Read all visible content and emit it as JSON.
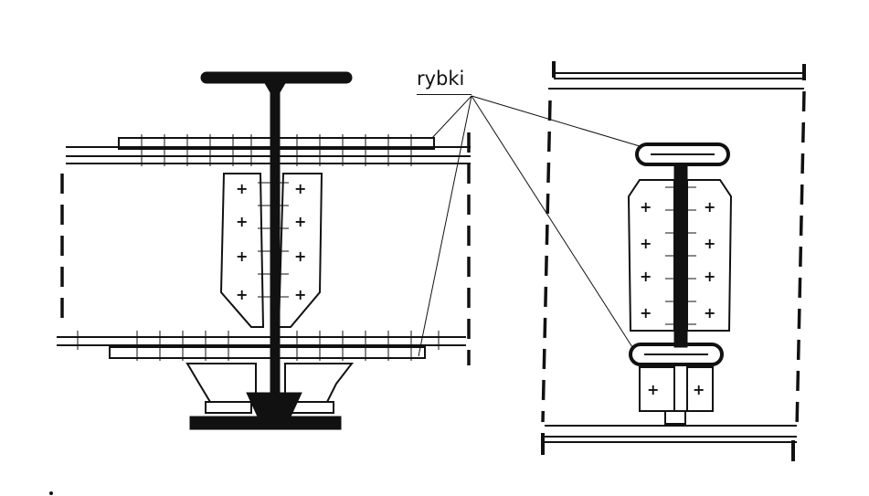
{
  "diagram": {
    "callout_label": "rybki",
    "colors": {
      "ink": "#111111",
      "background": "#ffffff"
    }
  }
}
